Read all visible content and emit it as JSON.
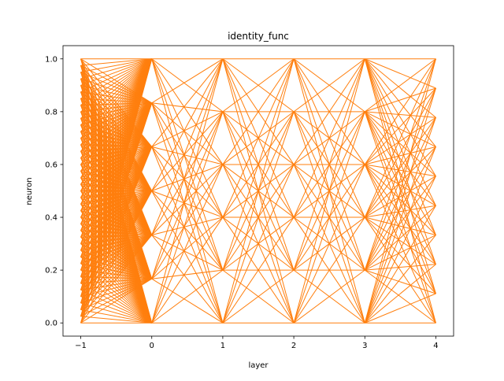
{
  "chart_data": {
    "type": "network",
    "title": "identity_func",
    "x_label": "layer",
    "y_label": "neuron",
    "color": "#ff7f0e",
    "xlim": [
      -1.25,
      4.25
    ],
    "ylim": [
      -0.05,
      1.05
    ],
    "xticks": [
      {
        "value": -1,
        "label": "−1"
      },
      0,
      1,
      2,
      3,
      4
    ],
    "yticks": [
      {
        "value": 0,
        "label": "0.0"
      },
      0.2,
      0.4,
      0.6,
      0.8,
      {
        "value": 1,
        "label": "1.0"
      }
    ],
    "layers": [
      {
        "x": -1,
        "neurons": [
          0,
          0.025,
          0.05,
          0.075,
          0.1,
          0.125,
          0.15,
          0.175,
          0.2,
          0.225,
          0.25,
          0.275,
          0.3,
          0.325,
          0.35,
          0.375,
          0.4,
          0.425,
          0.45,
          0.475,
          0.5,
          0.525,
          0.55,
          0.575,
          0.6,
          0.625,
          0.65,
          0.675,
          0.7,
          0.725,
          0.75,
          0.775,
          0.8,
          0.825,
          0.85,
          0.875,
          0.9,
          0.925,
          0.95,
          0.975,
          1
        ]
      },
      {
        "x": 0,
        "neurons": [
          0,
          0.167,
          0.333,
          0.5,
          0.667,
          0.833,
          1
        ]
      },
      {
        "x": 1,
        "neurons": [
          0,
          0.2,
          0.4,
          0.6,
          0.8,
          1
        ]
      },
      {
        "x": 2,
        "neurons": [
          0,
          0.2,
          0.4,
          0.6,
          0.8,
          1
        ]
      },
      {
        "x": 3,
        "neurons": [
          0,
          0.2,
          0.4,
          0.6,
          0.8,
          1
        ]
      },
      {
        "x": 4,
        "neurons": [
          0,
          0.111,
          0.222,
          0.333,
          0.444,
          0.556,
          0.667,
          0.778,
          0.889,
          1
        ]
      }
    ]
  }
}
